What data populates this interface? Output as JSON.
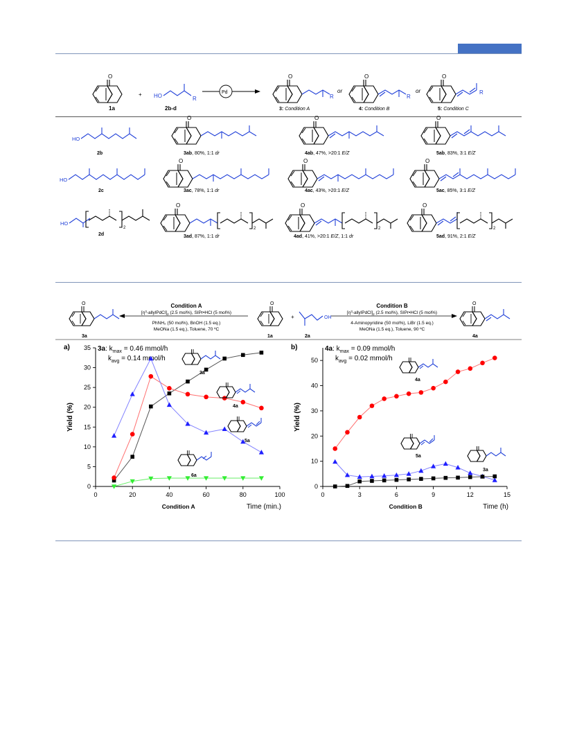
{
  "scheme1": {
    "reactant_1": "1a",
    "reactant_2": "2b-d",
    "plus": "+",
    "catalyst": "Pd",
    "sub_R": "R",
    "or_1": "or",
    "or_2": "or",
    "product_3_label": "3:",
    "product_3_cond": "Condition A",
    "product_4_label": "4:",
    "product_4_cond": "Condition B",
    "product_5_label": "5:",
    "product_5_cond": "Condition C",
    "ho": "HO",
    "rows": [
      {
        "substrate": "2b",
        "p3_id": "3ab",
        "p3_text": ", 80%, 1:1 ",
        "p3_dr": "dr",
        "p4_id": "4ab",
        "p4_text": ", 47%, >20:1 ",
        "p4_ez": "E/Z",
        "p5_id": "5ab",
        "p5_text": ", 83%, 3:1 ",
        "p5_ez": "E/Z"
      },
      {
        "substrate": "2c",
        "p3_id": "3ac",
        "p3_text": ", 78%, 1:1 ",
        "p3_dr": "dr",
        "p4_id": "4ac",
        "p4_text": ", 43%, >20:1 ",
        "p4_ez": "E/Z",
        "p5_id": "5ac",
        "p5_text": ", 85%, 3:1 ",
        "p5_ez": "E/Z"
      },
      {
        "substrate": "2d",
        "p3_id": "3ad",
        "p3_text": ", 87%, 1:1 ",
        "p3_dr": "dr",
        "p4_id": "4ad",
        "p4_text": ", 41%, >20:1 ",
        "p4_ez": "E/Z",
        "p4_extra": ", 1:1 ",
        "p4_dr": "dr",
        "p5_id": "5ad",
        "p5_text": ", 91%, 2:1 ",
        "p5_ez": "E/Z"
      }
    ],
    "subscript_2": "2"
  },
  "scheme2": {
    "condA_title": "Condition A",
    "condA_line1_pre": "[",
    "condA_line1_eta": "η",
    "condA_line1_sup": "3",
    "condA_line1_post": "-allylPdCl]",
    "condA_line1_sub": "2",
    "condA_line1_tail": " (2.5 mol%), SIPr•HCl (5 mol%)",
    "condA_line2": "PhNH₂ (50 mol%), BnOH (1.5 eq.)",
    "condA_line3": "MeONa (1.5 eq.), Toluene, 70 ºC",
    "condB_title": "Condition B",
    "condB_line1_tail": " (2.5 mol%), SIPr•HCl (5 mol%)",
    "condB_line2": "4-Aminopyridine (50 mol%), LiBr (1.5 eq.)",
    "condB_line3": "MeONa (1.5 eq.), Toluene, 90 ºC",
    "left_product": "3a",
    "right_product": "4a",
    "ketone": "1a",
    "alcohol": "2a",
    "plus": "+",
    "oh": "OH"
  },
  "chart_data": [
    {
      "type": "line",
      "panel": "a)",
      "annot_id": "3a",
      "annot_kmax": ": k",
      "annot_kmax_sub": "max",
      "annot_kmax_val": " = 0.46 mmol/h",
      "annot_kavg": "k",
      "annot_kavg_sub": "avg",
      "annot_kavg_val": " = 0.14 mmol/h",
      "ylabel": "Yield (%)",
      "xlabel": "Condition A",
      "xunit": "Time (min.)",
      "xlim": [
        0,
        100
      ],
      "ylim": [
        0,
        35
      ],
      "xticks": [
        0,
        20,
        40,
        60,
        80,
        100
      ],
      "yticks": [
        0,
        5,
        10,
        15,
        20,
        25,
        30,
        35
      ],
      "series": [
        {
          "name": "3a",
          "color": "#000000",
          "marker": "square",
          "x": [
            10,
            20,
            30,
            40,
            50,
            60,
            70,
            80,
            90
          ],
          "y": [
            1.5,
            7.5,
            20.2,
            23.5,
            26.5,
            29.5,
            32.3,
            33.2,
            33.8
          ]
        },
        {
          "name": "4a",
          "color": "#ff0000",
          "marker": "circle",
          "x": [
            10,
            20,
            30,
            40,
            50,
            60,
            70,
            80,
            90
          ],
          "y": [
            2.2,
            13.2,
            27.8,
            24.8,
            23.3,
            22.6,
            22.3,
            21.3,
            19.8
          ]
        },
        {
          "name": "5a",
          "color": "#2020ff",
          "marker": "triangle",
          "x": [
            10,
            20,
            30,
            40,
            50,
            60,
            70,
            80,
            90
          ],
          "y": [
            12.8,
            23.3,
            32.3,
            20.6,
            15.8,
            13.6,
            14.5,
            11.3,
            8.6
          ]
        },
        {
          "name": "6a",
          "color": "#33ee33",
          "marker": "triangle-down",
          "x": [
            10,
            20,
            30,
            40,
            50,
            60,
            70,
            80,
            90
          ],
          "y": [
            0,
            1.3,
            2.0,
            2.1,
            2.1,
            2.1,
            2.1,
            2.1,
            2.1
          ]
        }
      ]
    },
    {
      "type": "line",
      "panel": "b)",
      "annot_id": "4a",
      "annot_kmax": ": k",
      "annot_kmax_sub": "max",
      "annot_kmax_val": " = 0.09 mmol/h",
      "annot_kavg": "k",
      "annot_kavg_sub": "avg",
      "annot_kavg_val": " = 0.02 mmol/h",
      "ylabel": "Yield (%)",
      "xlabel": "Condition B",
      "xunit": "Time (h)",
      "xlim": [
        0,
        15
      ],
      "ylim": [
        0,
        55
      ],
      "xticks": [
        0,
        3,
        6,
        9,
        12,
        15
      ],
      "yticks": [
        0,
        10,
        20,
        30,
        40,
        50
      ],
      "series": [
        {
          "name": "4a",
          "color": "#ff0000",
          "marker": "circle",
          "x": [
            1,
            2,
            3,
            4,
            5,
            6,
            7,
            8,
            9,
            10,
            11,
            12,
            13,
            14
          ],
          "y": [
            15,
            21.5,
            27.5,
            32,
            34.8,
            35.8,
            36.8,
            37.3,
            39,
            41.5,
            45.5,
            46.8,
            49,
            51
          ]
        },
        {
          "name": "5a",
          "color": "#2020ff",
          "marker": "triangle",
          "x": [
            1,
            2,
            3,
            4,
            5,
            6,
            7,
            8,
            9,
            10,
            11,
            12,
            13,
            14
          ],
          "y": [
            9.8,
            4.5,
            3.8,
            4,
            4.2,
            4.5,
            5,
            6.2,
            8,
            9,
            7.5,
            5.3,
            4,
            2.5
          ]
        },
        {
          "name": "3a",
          "color": "#000000",
          "marker": "square",
          "x": [
            1,
            2,
            3,
            4,
            5,
            6,
            7,
            8,
            9,
            10,
            11,
            12,
            13,
            14
          ],
          "y": [
            0,
            0.2,
            2,
            2.2,
            2.4,
            2.6,
            2.8,
            3,
            3.2,
            3.4,
            3.5,
            3.7,
            3.9,
            4
          ]
        }
      ]
    }
  ]
}
